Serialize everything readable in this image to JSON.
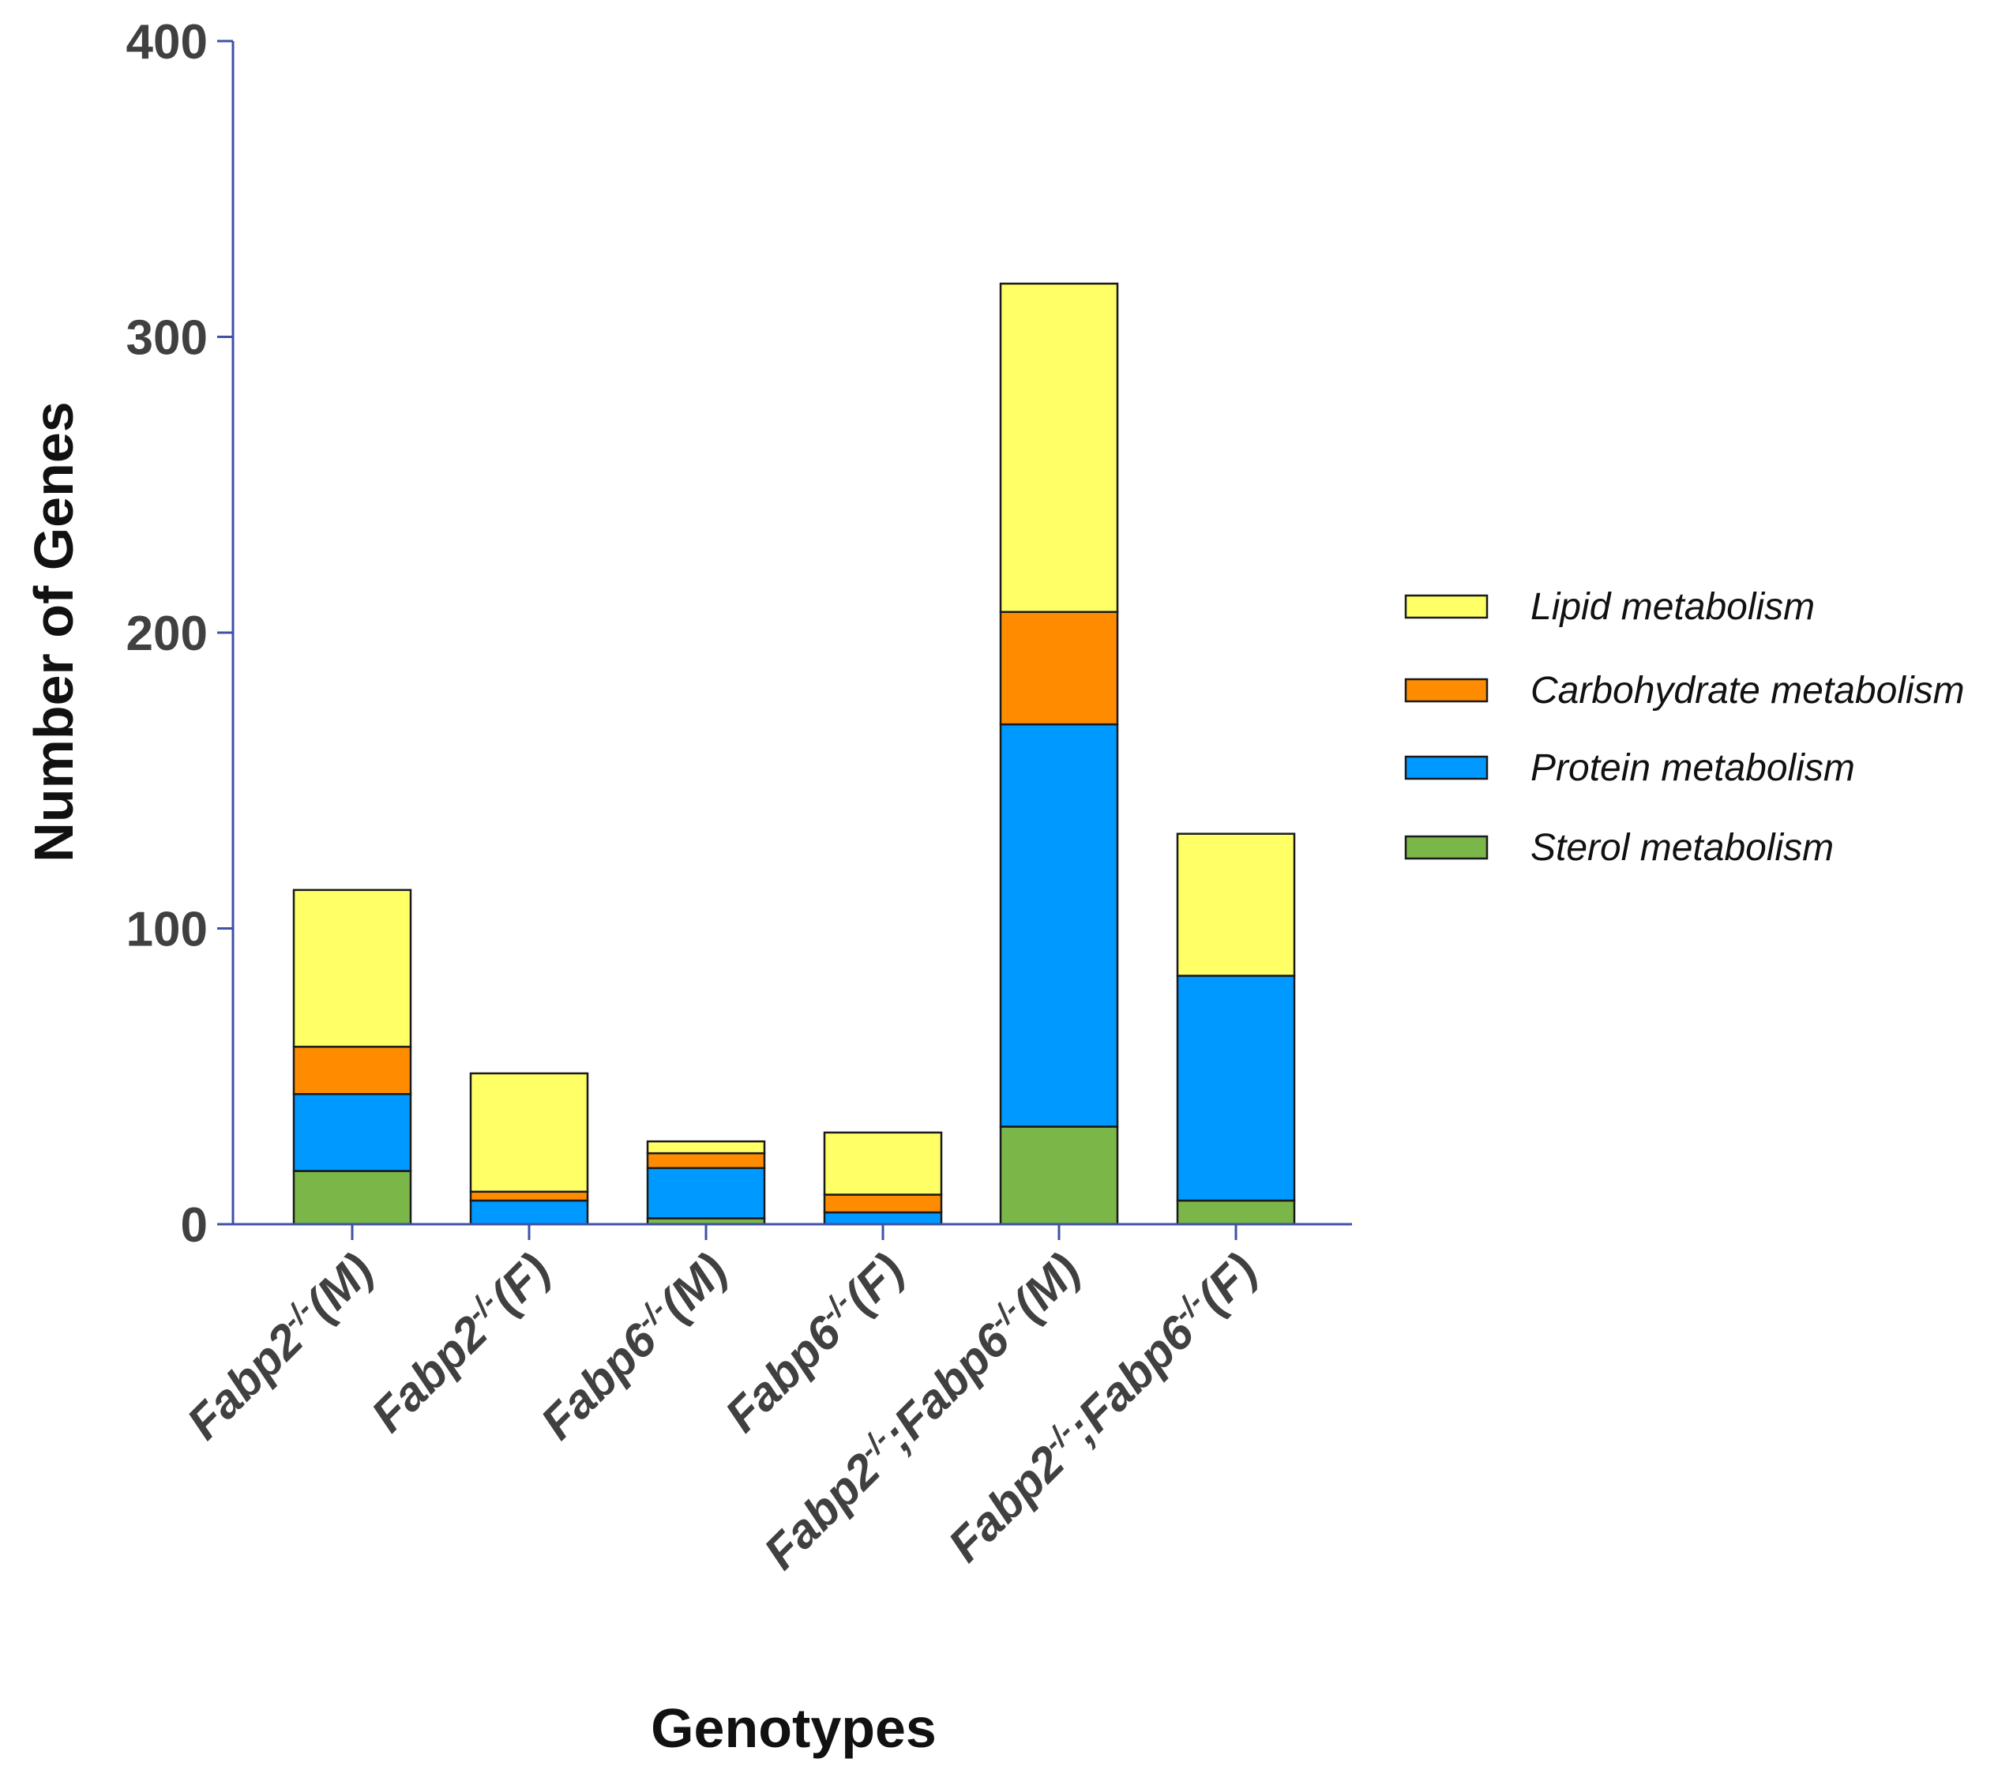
{
  "chart_data": {
    "type": "bar",
    "stacked": true,
    "xlabel": "Genotypes",
    "ylabel": "Number of Genes",
    "ylim": [
      0,
      400
    ],
    "yticks": [
      "0",
      "100",
      "200",
      "300",
      "400"
    ],
    "grid": false,
    "legend_position": "right",
    "categories": [
      {
        "base": "Fabp2",
        "sup": "-/-",
        "rest": "(M)"
      },
      {
        "base": "Fabp2",
        "sup": "-/-",
        "rest": "(F)"
      },
      {
        "base": "Fabp6",
        "sup": "-/-",
        "rest": "(M)"
      },
      {
        "base": "Fabp6",
        "sup": "-/-",
        "rest": "(F)"
      },
      {
        "base": "Fabp2",
        "sup": "-/-",
        "rest": ";Fabp6",
        "sup2": "-/-",
        "rest2": "(M)"
      },
      {
        "base": "Fabp2",
        "sup": "-/-",
        "rest": ";Fabp6",
        "sup2": "-/-",
        "rest2": "(F)"
      }
    ],
    "series": [
      {
        "name": "Sterol metabolism",
        "color": "#7ab648",
        "values": [
          18,
          0,
          2,
          0,
          33,
          8
        ]
      },
      {
        "name": "Protein metabolism",
        "color": "#0099ff",
        "values": [
          26,
          8,
          17,
          4,
          136,
          76
        ]
      },
      {
        "name": "Carbohydrate metabolism",
        "color": "#ff8c00",
        "values": [
          16,
          3,
          5,
          6,
          38,
          0
        ]
      },
      {
        "name": "Lipid metabolism",
        "color": "#ffff66",
        "values": [
          53,
          40,
          4,
          21,
          111,
          48
        ]
      }
    ],
    "legend_order": [
      "Lipid metabolism",
      "Carbohydrate metabolism",
      "Protein metabolism",
      "Sterol metabolism"
    ]
  }
}
